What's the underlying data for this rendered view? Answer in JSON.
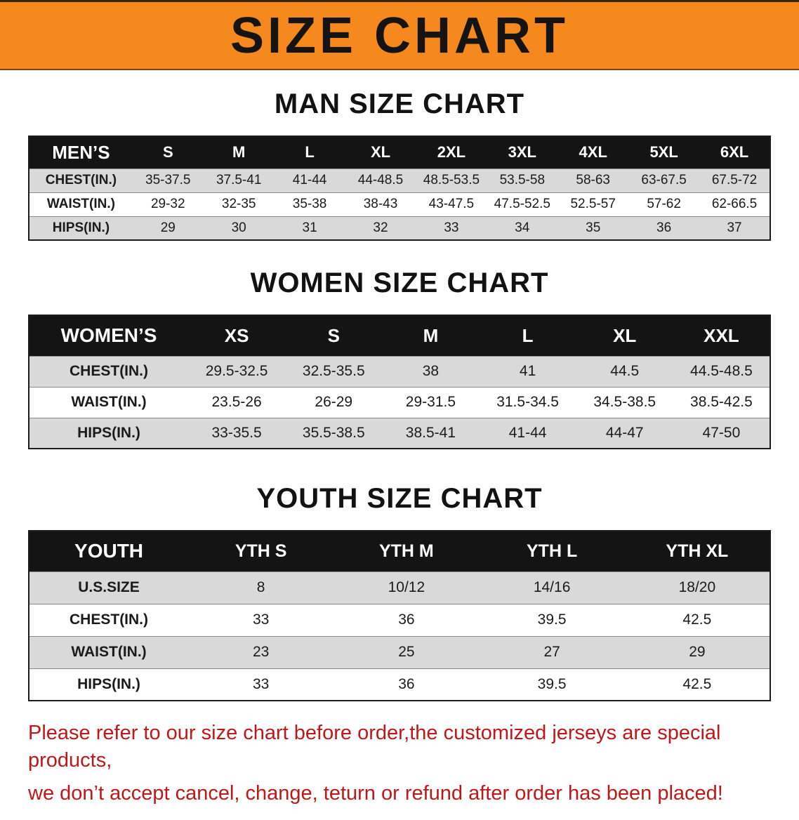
{
  "banner": {
    "title": "SIZE CHART"
  },
  "sections": [
    {
      "heading": "MAN SIZE CHART",
      "table": {
        "header": [
          "MEN’S",
          "S",
          "M",
          "L",
          "XL",
          "2XL",
          "3XL",
          "4XL",
          "5XL",
          "6XL"
        ],
        "rows": [
          [
            "CHEST(IN.)",
            "35-37.5",
            "37.5-41",
            "41-44",
            "44-48.5",
            "48.5-53.5",
            "53.5-58",
            "58-63",
            "63-67.5",
            "67.5-72"
          ],
          [
            "WAIST(IN.)",
            "29-32",
            "32-35",
            "35-38",
            "38-43",
            "43-47.5",
            "47.5-52.5",
            "52.5-57",
            "57-62",
            "62-66.5"
          ],
          [
            "HIPS(IN.)",
            "29",
            "30",
            "31",
            "32",
            "33",
            "34",
            "35",
            "36",
            "37"
          ]
        ]
      }
    },
    {
      "heading": "WOMEN SIZE CHART",
      "table": {
        "header": [
          "WOMEN’S",
          "XS",
          "S",
          "M",
          "L",
          "XL",
          "XXL"
        ],
        "rows": [
          [
            "CHEST(IN.)",
            "29.5-32.5",
            "32.5-35.5",
            "38",
            "41",
            "44.5",
            "44.5-48.5"
          ],
          [
            "WAIST(IN.)",
            "23.5-26",
            "26-29",
            "29-31.5",
            "31.5-34.5",
            "34.5-38.5",
            "38.5-42.5"
          ],
          [
            "HIPS(IN.)",
            "33-35.5",
            "35.5-38.5",
            "38.5-41",
            "41-44",
            "44-47",
            "47-50"
          ]
        ]
      }
    },
    {
      "heading": "YOUTH SIZE CHART",
      "table": {
        "header": [
          "YOUTH",
          "YTH S",
          "YTH M",
          "YTH L",
          "YTH XL"
        ],
        "rows": [
          [
            "U.S.SIZE",
            "8",
            "10/12",
            "14/16",
            "18/20"
          ],
          [
            "CHEST(IN.)",
            "33",
            "36",
            "39.5",
            "42.5"
          ],
          [
            "WAIST(IN.)",
            "23",
            "25",
            "27",
            "29"
          ],
          [
            "HIPS(IN.)",
            "33",
            "36",
            "39.5",
            "42.5"
          ]
        ]
      }
    }
  ],
  "footer": {
    "lines": [
      "Please refer to our size chart before order,the customized jerseys are special products,",
      "we don’t accept cancel, change, teturn or refund after order has been placed!"
    ]
  },
  "colors": {
    "banner-bg": "#F6891E",
    "header-bg": "#141414",
    "row-alt": "#D9D9D9",
    "disclaimer": "#C01818"
  }
}
